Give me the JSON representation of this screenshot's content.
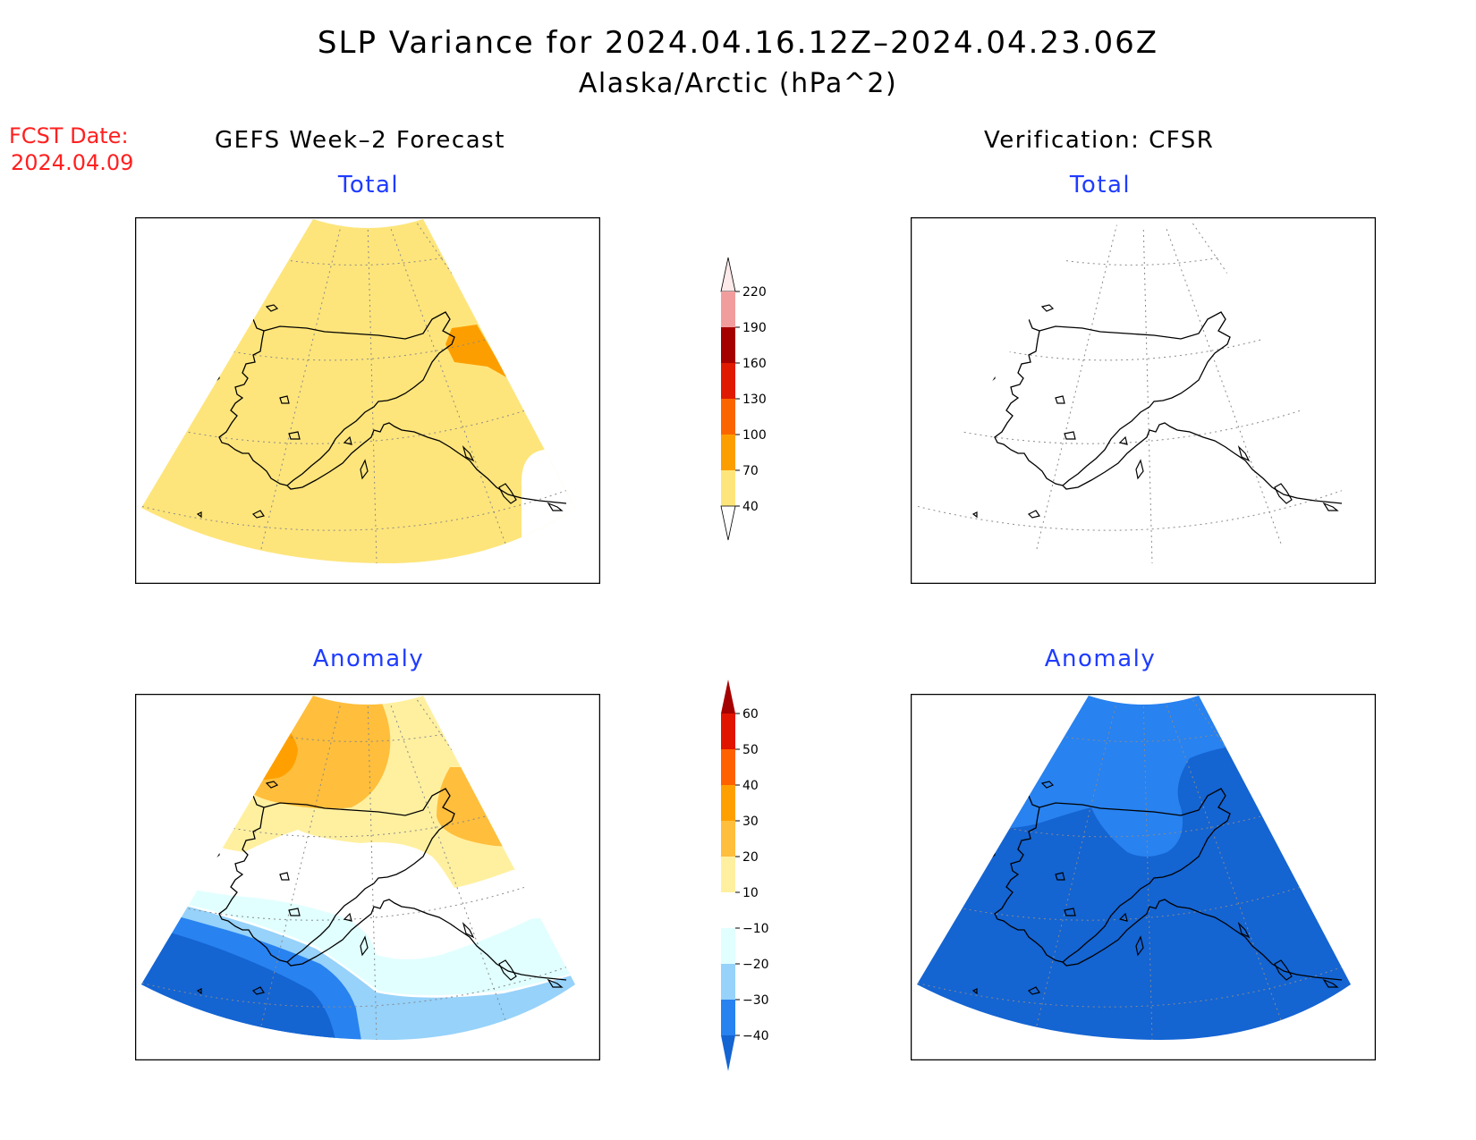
{
  "title": {
    "line1": "SLP Variance for 2024.04.16.12Z–2024.04.23.06Z",
    "line2": "Alaska/Arctic (hPa^2)"
  },
  "forecast_date": {
    "label": "FCST Date:",
    "value": "2024.04.09"
  },
  "columns": {
    "left": "GEFS Week–2 Forecast",
    "right": "Verification: CFSR"
  },
  "panels": {
    "forecast_total": "Total",
    "verification_total": "Total",
    "forecast_anomaly": "Anomaly",
    "verification_anomaly": "Anomaly"
  },
  "colorbars": {
    "total": {
      "labels": [
        "40",
        "70",
        "100",
        "130",
        "160",
        "190",
        "220"
      ],
      "colors": [
        "#fee57b",
        "#fd9e00",
        "#fb6500",
        "#e01a00",
        "#a50000",
        "#f29d9d",
        "#fde9e9"
      ],
      "under_color": "#ffffff"
    },
    "anomaly": {
      "labels": [
        "−40",
        "−30",
        "−20",
        "−10",
        "10",
        "20",
        "30",
        "40",
        "50",
        "60"
      ],
      "colors": [
        "#1464d2",
        "#2882f0",
        "#96d2fa",
        "#e1ffff",
        "#ffffff",
        "#fff0a0",
        "#ffbe3c",
        "#ffa000",
        "#ff6000",
        "#e11400",
        "#a50000"
      ]
    }
  },
  "map_colors": {
    "forecast_total_fill": "#fee57b",
    "forecast_total_hotspot": "#fd9e00",
    "verification_anomaly_main": "#1464d2",
    "verification_anomaly_light": "#2882f0"
  }
}
